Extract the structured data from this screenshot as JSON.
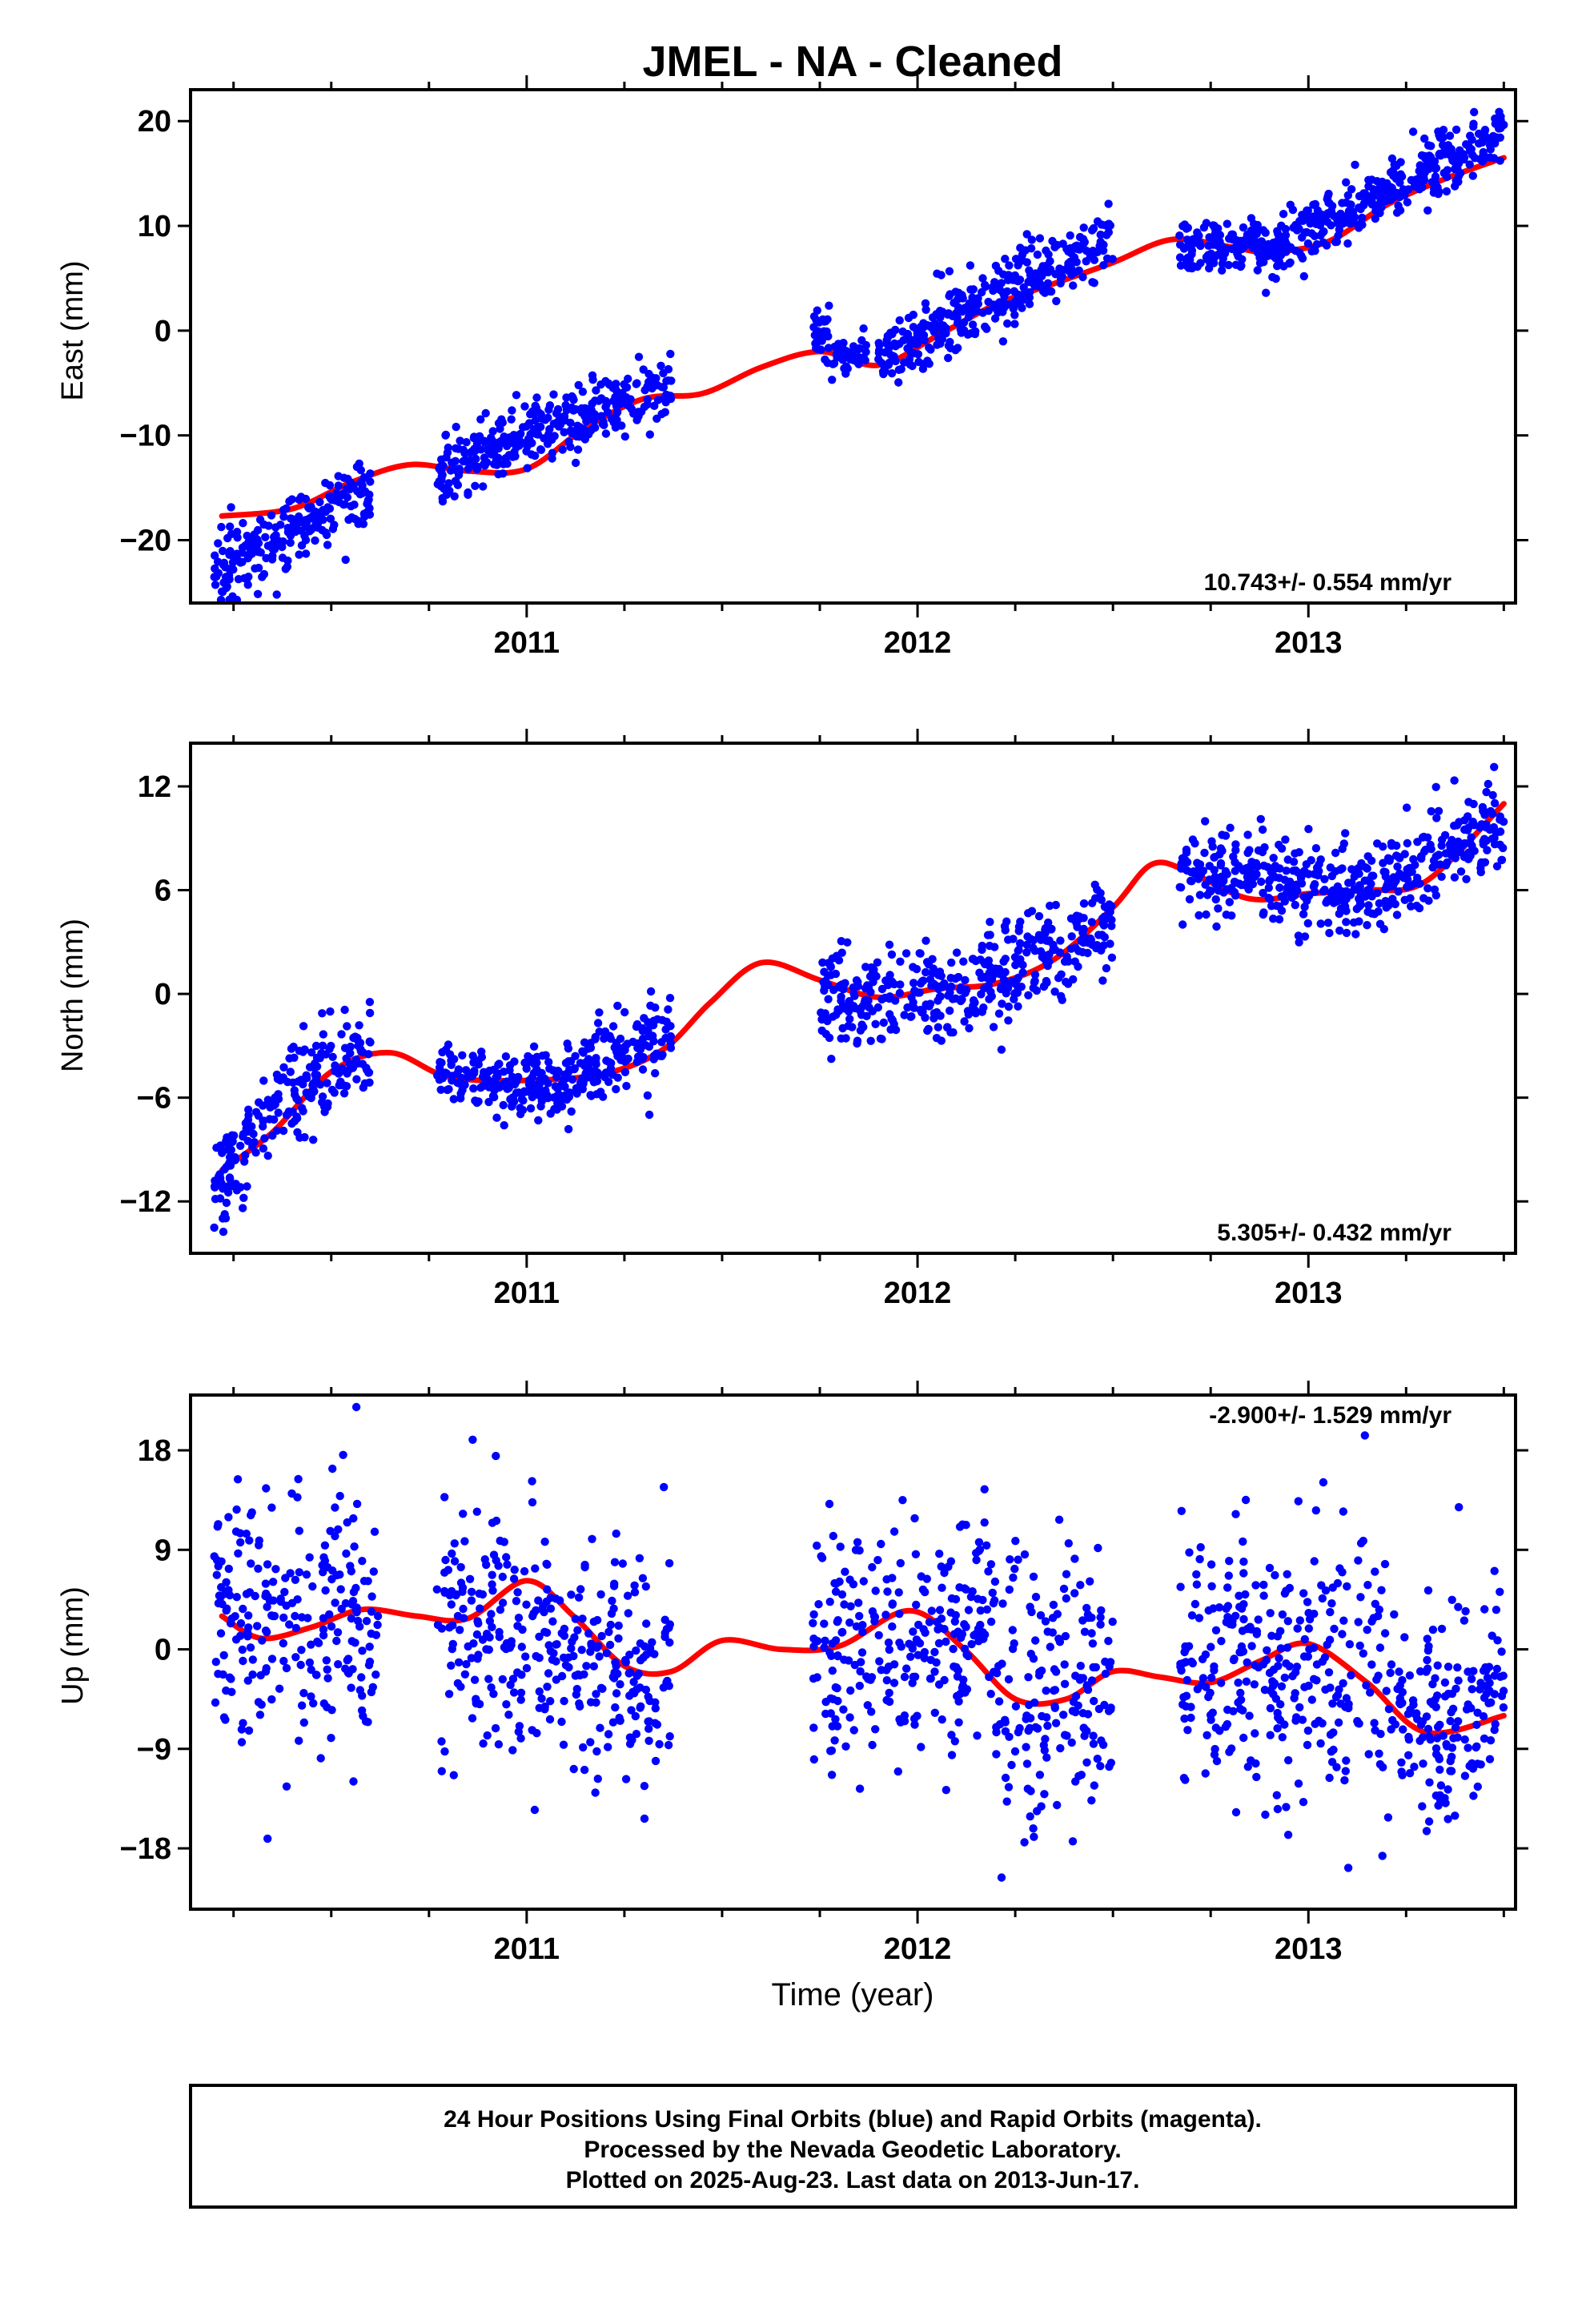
{
  "title": "JMEL  - NA - Cleaned",
  "colors": {
    "final_orbits": "#0000ff",
    "model_fit": "#ff0000",
    "frame": "#000000"
  },
  "x_axis": {
    "label": "Time (year)",
    "tick_labels": [
      "2011",
      "2012",
      "2013"
    ]
  },
  "footer": {
    "line1": "24 Hour Positions Using Final Orbits (blue) and Rapid Orbits (magenta).",
    "line2": "Processed by the Nevada Geodetic Laboratory.",
    "line3": "Plotted on 2025-Aug-23. Last data on 2013-Jun-17."
  },
  "chart_data": [
    {
      "type": "scatter",
      "name": "east",
      "ylabel": "East (mm)",
      "rate_text": "10.743+/- 0.554 mm/yr",
      "rate_position": "bottom-right",
      "xlim": [
        2010.14,
        2013.53
      ],
      "ylim": [
        -26,
        23
      ],
      "y_ticks": [
        20,
        10,
        0,
        -10,
        -20
      ],
      "y_tick_labels": [
        "20",
        "10",
        "0",
        "−10",
        "−20"
      ],
      "x_ticks": [
        2011,
        2012,
        2013
      ],
      "data_segments": [
        {
          "x": [
            2010.2,
            2010.6
          ],
          "y": [
            -23,
            -15
          ],
          "noise": 1.6
        },
        {
          "x": [
            2010.77,
            2011.37
          ],
          "y": [
            -13.5,
            -5
          ],
          "noise": 1.5
        },
        {
          "x": [
            2011.73,
            2011.78
          ],
          "y": [
            0.5,
            -1.5
          ],
          "noise": 1.5
        },
        {
          "x": [
            2011.78,
            2011.87
          ],
          "y": [
            -2.5,
            -2.5
          ],
          "noise": 1.0
        },
        {
          "x": [
            2011.9,
            2012.5
          ],
          "y": [
            -2.5,
            9
          ],
          "noise": 1.6
        },
        {
          "x": [
            2012.67,
            2012.92
          ],
          "y": [
            8.5,
            7.5
          ],
          "noise": 1.3
        },
        {
          "x": [
            2012.92,
            2013.5
          ],
          "y": [
            8,
            19
          ],
          "noise": 1.5
        }
      ],
      "model_fit": {
        "x": [
          2010.22,
          2010.4,
          2010.55,
          2010.7,
          2010.85,
          2011.0,
          2011.15,
          2011.3,
          2011.45,
          2011.6,
          2011.75,
          2011.9,
          2012.05,
          2012.2,
          2012.35,
          2012.5,
          2012.65,
          2012.8,
          2012.9,
          2013.05,
          2013.2,
          2013.35,
          2013.5
        ],
        "y": [
          -17.7,
          -17.0,
          -14.5,
          -12.8,
          -13.4,
          -13.2,
          -9.3,
          -6.5,
          -6.0,
          -3.5,
          -2.0,
          -3.3,
          -0.5,
          2.5,
          4.5,
          6.5,
          8.7,
          8.0,
          7.5,
          8.5,
          12.0,
          14.5,
          16.5
        ]
      }
    },
    {
      "type": "scatter",
      "name": "north",
      "ylabel": "North (mm)",
      "rate_text": "5.305+/- 0.432 mm/yr",
      "rate_position": "bottom-right",
      "xlim": [
        2010.14,
        2013.53
      ],
      "ylim": [
        -15,
        14.5
      ],
      "y_ticks": [
        12,
        6,
        0,
        -6,
        -12
      ],
      "y_tick_labels": [
        "12",
        "6",
        "0",
        "−6",
        "−12"
      ],
      "x_ticks": [
        2011,
        2012,
        2013
      ],
      "data_segments": [
        {
          "x": [
            2010.2,
            2010.35
          ],
          "y": [
            -11,
            -6.5
          ],
          "noise": 1.3
        },
        {
          "x": [
            2010.35,
            2010.6
          ],
          "y": [
            -6,
            -3
          ],
          "noise": 1.4
        },
        {
          "x": [
            2010.77,
            2011.1
          ],
          "y": [
            -4.5,
            -5.5
          ],
          "noise": 0.9
        },
        {
          "x": [
            2011.1,
            2011.37
          ],
          "y": [
            -5,
            -2
          ],
          "noise": 1.1
        },
        {
          "x": [
            2011.75,
            2012.2
          ],
          "y": [
            -0.5,
            0.8
          ],
          "noise": 1.4
        },
        {
          "x": [
            2012.2,
            2012.5
          ],
          "y": [
            1,
            4
          ],
          "noise": 1.5
        },
        {
          "x": [
            2012.67,
            2013.2
          ],
          "y": [
            7,
            6
          ],
          "noise": 1.2
        },
        {
          "x": [
            2013.2,
            2013.5
          ],
          "y": [
            6.5,
            10
          ],
          "noise": 1.4
        }
      ],
      "model_fit": {
        "x": [
          2010.22,
          2010.35,
          2010.5,
          2010.65,
          2010.8,
          2011.0,
          2011.2,
          2011.35,
          2011.47,
          2011.6,
          2011.75,
          2011.9,
          2012.05,
          2012.2,
          2012.35,
          2012.5,
          2012.6,
          2012.7,
          2012.85,
          2013.0,
          2013.15,
          2013.3,
          2013.5
        ],
        "y": [
          -10.2,
          -8.0,
          -4.5,
          -3.4,
          -4.8,
          -5.0,
          -4.6,
          -3.2,
          -0.5,
          1.8,
          0.8,
          -0.2,
          0.3,
          0.6,
          2.0,
          5.0,
          7.5,
          7.0,
          5.5,
          5.8,
          6.0,
          6.5,
          11.0
        ]
      }
    },
    {
      "type": "scatter",
      "name": "up",
      "ylabel": "Up (mm)",
      "rate_text": "-2.900+/- 1.529 mm/yr",
      "rate_position": "top-right",
      "xlim": [
        2010.14,
        2013.53
      ],
      "ylim": [
        -23.5,
        23
      ],
      "y_ticks": [
        18,
        9,
        0,
        -9,
        -18
      ],
      "y_tick_labels": [
        "18",
        "9",
        "0",
        "−9",
        "−18"
      ],
      "x_ticks": [
        2011,
        2012,
        2013
      ],
      "data_segments": [
        {
          "x": [
            2010.2,
            2010.62
          ],
          "y": [
            2.5,
            3
          ],
          "noise": 5.5
        },
        {
          "x": [
            2010.77,
            2011.37
          ],
          "y": [
            3,
            -3
          ],
          "noise": 5.5
        },
        {
          "x": [
            2011.73,
            2012.2
          ],
          "y": [
            0,
            2
          ],
          "noise": 5.5
        },
        {
          "x": [
            2012.2,
            2012.5
          ],
          "y": [
            -5,
            -3
          ],
          "noise": 6.0
        },
        {
          "x": [
            2012.67,
            2013.2
          ],
          "y": [
            -2,
            -1
          ],
          "noise": 6.0
        },
        {
          "x": [
            2013.2,
            2013.5
          ],
          "y": [
            -7,
            -5
          ],
          "noise": 5.5
        }
      ],
      "model_fit": {
        "x": [
          2010.22,
          2010.32,
          2010.45,
          2010.58,
          2010.72,
          2010.85,
          2011.0,
          2011.12,
          2011.25,
          2011.37,
          2011.5,
          2011.65,
          2011.8,
          2011.98,
          2012.12,
          2012.25,
          2012.38,
          2012.5,
          2012.62,
          2012.75,
          2012.88,
          2013.0,
          2013.15,
          2013.3,
          2013.5
        ],
        "y": [
          3.0,
          1.0,
          2.0,
          3.6,
          3.0,
          2.8,
          6.2,
          3.0,
          -1.5,
          -2.0,
          0.8,
          0.0,
          0.3,
          3.5,
          0.0,
          -4.5,
          -4.5,
          -2.0,
          -2.5,
          -3.0,
          -1.0,
          0.5,
          -3.0,
          -7.5,
          -6.0
        ]
      }
    }
  ]
}
